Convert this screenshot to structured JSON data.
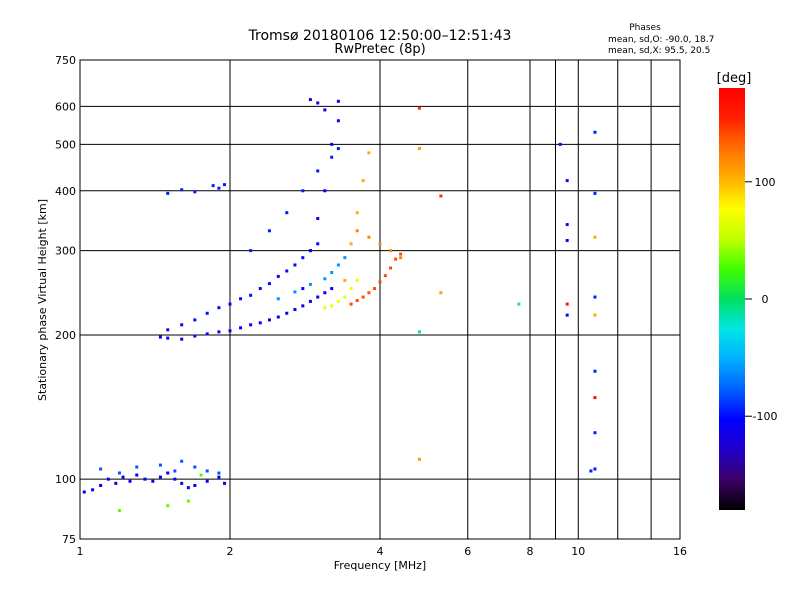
{
  "chart_data": {
    "type": "scatter",
    "title": "Tromsø 20180106 12:50:00–12:51:43",
    "subtitle": "RwPretec (8p)",
    "xlabel": "Frequency [MHz]",
    "ylabel": "Stationary phase Virtual Height [km]",
    "x_scale": "log2",
    "y_scale": "log",
    "xlim": [
      1,
      16
    ],
    "ylim": [
      75,
      750
    ],
    "x_ticks": [
      "1",
      "2",
      "4",
      "6",
      "8",
      "10",
      "16"
    ],
    "y_ticks": [
      "75",
      "100",
      "200",
      "300",
      "400",
      "500",
      "600",
      "750"
    ],
    "grid": true,
    "stats": {
      "heading": "Phases",
      "line_o": "mean, sd,O: -90.0, 18.7",
      "line_x": "mean, sd,X:  95.5, 20.5"
    },
    "colorbar": {
      "label": "[deg]",
      "range": [
        -180,
        180
      ],
      "ticks": [
        "100",
        "0",
        "-100"
      ],
      "colormap": [
        "#000000",
        "#3a0066",
        "#2200cc",
        "#0000ff",
        "#0060ff",
        "#00b0ff",
        "#00e6e6",
        "#00e060",
        "#40ff00",
        "#c0ff00",
        "#ffff00",
        "#ffb000",
        "#ff7000",
        "#ff2000",
        "#ff0000"
      ]
    },
    "series": [
      {
        "x": [
          1.02,
          1.06,
          1.1,
          1.14,
          1.18,
          1.22,
          1.26,
          1.3,
          1.35,
          1.4,
          1.45,
          1.5,
          1.55,
          1.6,
          1.65,
          1.7,
          1.8,
          1.9,
          1.95
        ],
        "y": [
          94,
          95,
          97,
          100,
          98,
          101,
          99,
          102,
          100,
          99,
          101,
          103,
          100,
          98,
          96,
          97,
          99,
          101,
          98
        ],
        "phase": -105
      },
      {
        "x": [
          1.1,
          1.2,
          1.3,
          1.45,
          1.55,
          1.6,
          1.7,
          1.8,
          1.9
        ],
        "y": [
          105,
          103,
          106,
          107,
          104,
          109,
          106,
          104,
          103
        ],
        "phase": -80
      },
      {
        "x": [
          1.2,
          1.5,
          1.65,
          1.75
        ],
        "y": [
          86,
          88,
          90,
          102
        ],
        "phase": 30
      },
      {
        "x": [
          1.5,
          1.6,
          1.7,
          1.85,
          1.9,
          1.95
        ],
        "y": [
          395,
          402,
          398,
          410,
          405,
          412
        ],
        "phase": -95
      },
      {
        "x": [
          1.45,
          1.5,
          1.6,
          1.7,
          1.8,
          1.9,
          2.0,
          2.1,
          2.2,
          2.3,
          2.4,
          2.5,
          2.6,
          2.7,
          2.8,
          2.9,
          3.0,
          3.1,
          3.2
        ],
        "y": [
          198,
          197,
          196,
          199,
          201,
          203,
          204,
          207,
          210,
          212,
          215,
          218,
          222,
          226,
          230,
          235,
          240,
          245,
          250
        ],
        "phase": -110
      },
      {
        "x": [
          1.5,
          1.6,
          1.7,
          1.8,
          1.9,
          2.0,
          2.1,
          2.2,
          2.3,
          2.4,
          2.5,
          2.6,
          2.7,
          2.8,
          2.9,
          3.0
        ],
        "y": [
          205,
          210,
          215,
          222,
          228,
          232,
          238,
          242,
          250,
          256,
          265,
          272,
          280,
          290,
          300,
          310
        ],
        "phase": -100
      },
      {
        "x": [
          2.2,
          2.4,
          2.6,
          2.8,
          3.0,
          3.2,
          3.3
        ],
        "y": [
          300,
          330,
          360,
          400,
          440,
          470,
          490
        ],
        "phase": -95
      },
      {
        "x": [
          2.8,
          2.9,
          3.0,
          3.1,
          3.2,
          3.3
        ],
        "y": [
          250,
          300,
          350,
          400,
          500,
          560
        ],
        "phase": -105
      },
      {
        "x": [
          2.9,
          3.0,
          3.1,
          3.3
        ],
        "y": [
          620,
          610,
          590,
          615
        ],
        "phase": -115
      },
      {
        "x": [
          2.5,
          2.7,
          2.9,
          3.1,
          3.2,
          3.3,
          3.4
        ],
        "y": [
          238,
          246,
          255,
          262,
          270,
          280,
          290
        ],
        "phase": -60
      },
      {
        "x": [
          3.1,
          3.2,
          3.3,
          3.4,
          3.5,
          3.6
        ],
        "y": [
          228,
          230,
          235,
          240,
          250,
          260
        ],
        "phase": 70
      },
      {
        "x": [
          3.4,
          3.5,
          3.6,
          3.7,
          3.8
        ],
        "y": [
          260,
          310,
          360,
          420,
          480
        ],
        "phase": 105
      },
      {
        "x": [
          3.5,
          3.6,
          3.7,
          3.8,
          3.9,
          4.0,
          4.1,
          4.2,
          4.3,
          4.4
        ],
        "y": [
          232,
          236,
          240,
          245,
          250,
          258,
          266,
          276,
          288,
          295
        ],
        "phase": 140
      },
      {
        "x": [
          3.6,
          3.8,
          4.0,
          4.2,
          4.4
        ],
        "y": [
          330,
          320,
          310,
          300,
          290
        ],
        "phase": 120
      },
      {
        "x": [
          4.8,
          5.3
        ],
        "y": [
          595,
          390
        ],
        "phase": 150
      },
      {
        "x": [
          4.8,
          5.3,
          4.8
        ],
        "y": [
          490,
          245,
          110
        ],
        "phase": 110
      },
      {
        "x": [
          4.8,
          7.6
        ],
        "y": [
          203,
          232
        ],
        "phase": -20
      },
      {
        "x": [
          9.2,
          9.5,
          9.5,
          9.5,
          9.5
        ],
        "y": [
          500,
          420,
          340,
          315,
          220
        ],
        "phase": -100
      },
      {
        "x": [
          9.5
        ],
        "y": [
          232
        ],
        "phase": 160
      },
      {
        "x": [
          10.8,
          10.8,
          10.8,
          10.8,
          10.8,
          10.8,
          10.6
        ],
        "y": [
          530,
          395,
          240,
          168,
          125,
          105,
          104
        ],
        "phase": -95
      },
      {
        "x": [
          10.8
        ],
        "y": [
          148
        ],
        "phase": 170
      },
      {
        "x": [
          10.8,
          10.8
        ],
        "y": [
          320,
          220
        ],
        "phase": 105
      }
    ]
  }
}
